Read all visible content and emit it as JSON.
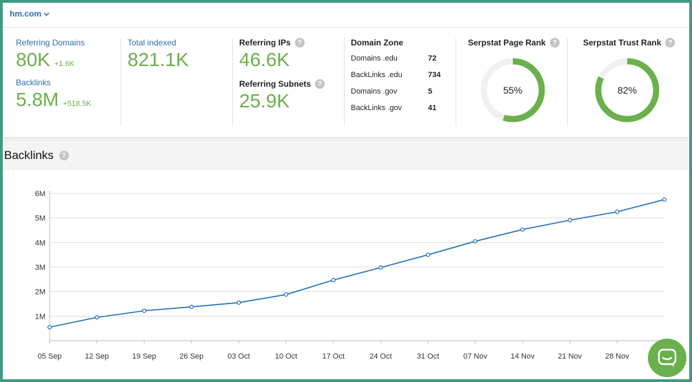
{
  "header": {
    "domain": "hm.com"
  },
  "stats": {
    "referring_domains": {
      "label": "Referring Domains",
      "value": "80K",
      "delta": "+1.6K"
    },
    "backlinks": {
      "label": "Backlinks",
      "value": "5.8M",
      "delta": "+518.5K"
    },
    "total_indexed": {
      "label": "Total indexed",
      "value": "821.1K"
    },
    "referring_ips": {
      "label": "Referring IPs",
      "value": "46.6K"
    },
    "referring_subnets": {
      "label": "Referring Subnets",
      "value": "25.9K"
    },
    "domain_zone": {
      "label": "Domain Zone",
      "rows": [
        {
          "k": "Domains .edu",
          "v": "72"
        },
        {
          "k": "BackLinks .edu",
          "v": "734"
        },
        {
          "k": "Domains .gov",
          "v": "5"
        },
        {
          "k": "BackLinks .gov",
          "v": "41"
        }
      ]
    },
    "page_rank": {
      "label": "Serpstat Page Rank",
      "value": "55%",
      "percent": 55
    },
    "trust_rank": {
      "label": "Serpstat Trust Rank",
      "value": "82%",
      "percent": 82
    }
  },
  "section": {
    "title": "Backlinks"
  },
  "colors": {
    "accent": "#6ab04c",
    "link": "#2a6fb0",
    "line": "#1f6fb8",
    "frame": "#3e9a82"
  },
  "icons": {
    "help": "question-circle-icon",
    "chat": "chat-icon",
    "dropdown": "chevron-down-icon"
  },
  "chart_data": {
    "type": "line",
    "categories": [
      "05 Sep",
      "12 Sep",
      "19 Sep",
      "26 Sep",
      "03 Oct",
      "10 Oct",
      "17 Oct",
      "24 Oct",
      "31 Oct",
      "07 Nov",
      "14 Nov",
      "21 Nov",
      "28 Nov",
      ""
    ],
    "x_tick_labels": [
      "05 Sep",
      "12 Sep",
      "19 Sep",
      "26 Sep",
      "03 Oct",
      "10 Oct",
      "17 Oct",
      "24 Oct",
      "31 Oct",
      "07 Nov",
      "14 Nov",
      "21 Nov",
      "28 Nov"
    ],
    "values": [
      0.55,
      0.95,
      1.22,
      1.38,
      1.55,
      1.88,
      2.47,
      2.98,
      3.5,
      4.05,
      4.53,
      4.91,
      5.25,
      5.75
    ],
    "y_tick_labels": [
      "1M",
      "2M",
      "3M",
      "4M",
      "5M",
      "6M"
    ],
    "ylim": [
      0,
      6
    ],
    "grid": true,
    "title": "",
    "xlabel": "",
    "ylabel": ""
  }
}
